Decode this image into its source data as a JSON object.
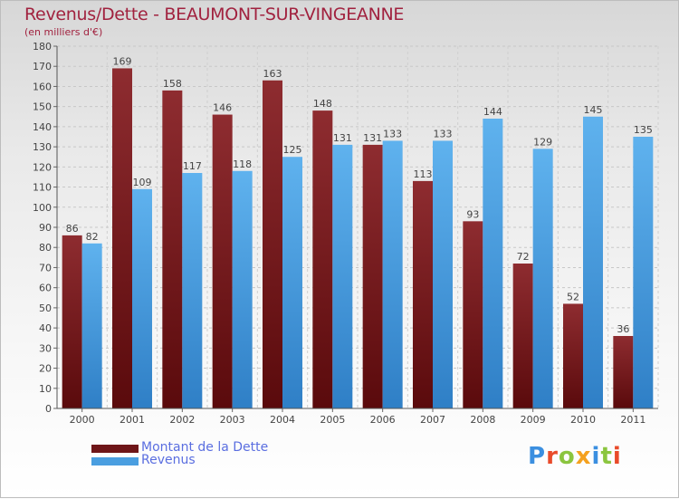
{
  "title": "Revenus/Dette - BEAUMONT-SUR-VINGEANNE",
  "subtitle": "(en milliers d'€)",
  "logo": {
    "letters": [
      {
        "ch": "P",
        "color": "#3b8fe0"
      },
      {
        "ch": "r",
        "color": "#e94b2a"
      },
      {
        "ch": "o",
        "color": "#8bc53f"
      },
      {
        "ch": "x",
        "color": "#f4a11f"
      },
      {
        "ch": "i",
        "color": "#3b8fe0"
      },
      {
        "ch": "t",
        "color": "#8bc53f"
      },
      {
        "ch": "i",
        "color": "#e94b2a"
      }
    ]
  },
  "legend": [
    {
      "label": "Montant de la Dette",
      "color": "#6e1518"
    },
    {
      "label": "Revenus",
      "color": "#4a9ee0"
    }
  ],
  "chart_data": {
    "type": "bar",
    "title": "Revenus/Dette - BEAUMONT-SUR-VINGEANNE",
    "subtitle": "(en milliers d'€)",
    "categories": [
      "2000",
      "2001",
      "2002",
      "2003",
      "2004",
      "2005",
      "2006",
      "2007",
      "2008",
      "2009",
      "2010",
      "2011"
    ],
    "series": [
      {
        "name": "Montant de la Dette",
        "color": "#6e1518",
        "values": [
          86,
          169,
          158,
          146,
          163,
          148,
          131,
          113,
          93,
          72,
          52,
          36
        ]
      },
      {
        "name": "Revenus",
        "color": "#4a9ee0",
        "values": [
          82,
          109,
          117,
          118,
          125,
          131,
          133,
          133,
          144,
          129,
          145,
          135
        ]
      }
    ],
    "ylim": [
      0,
      180
    ],
    "yticks": [
      0,
      10,
      20,
      30,
      40,
      50,
      60,
      70,
      80,
      90,
      100,
      110,
      120,
      130,
      140,
      150,
      160,
      170,
      180
    ],
    "grid": true,
    "legend_position": "bottom-left"
  }
}
